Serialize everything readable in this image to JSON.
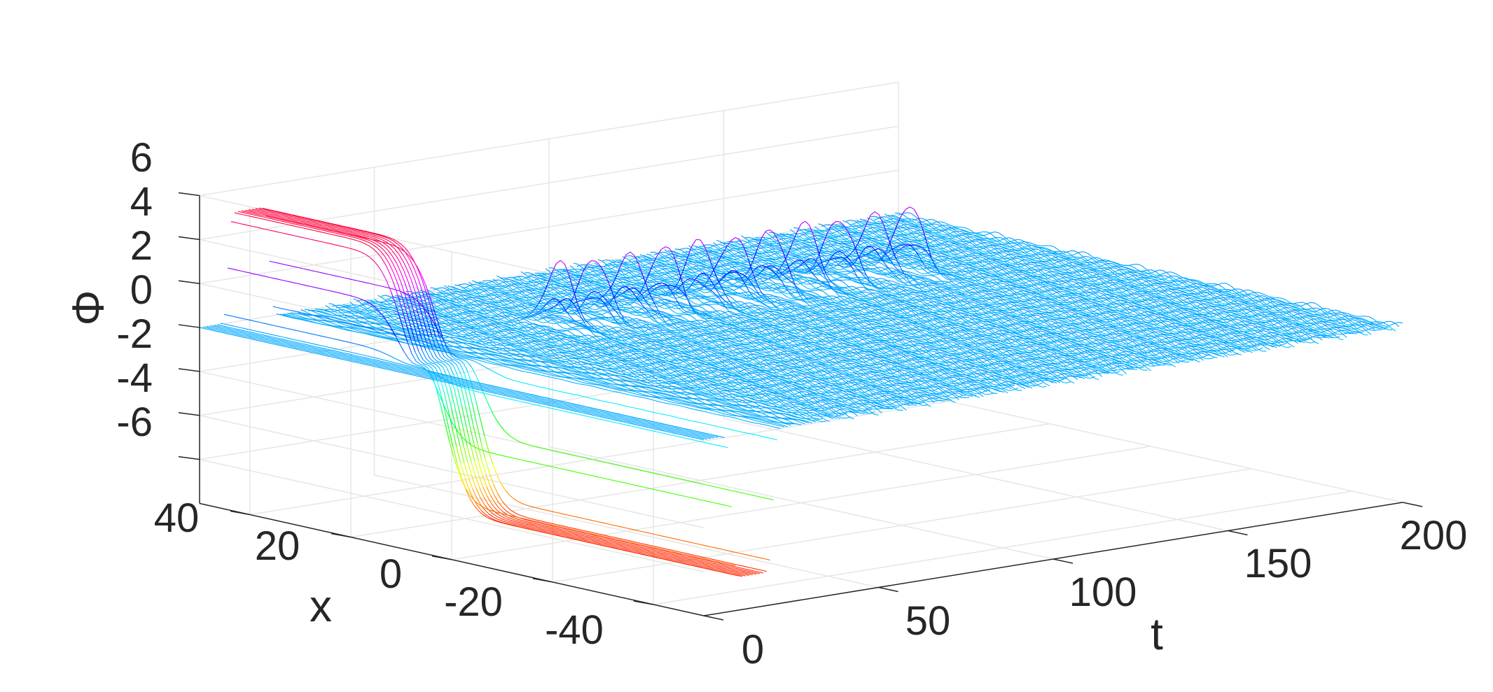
{
  "chart_data": {
    "type": "surface",
    "title": "",
    "xlabel": "t",
    "ylabel": "x",
    "zlabel": "Φ",
    "xlim": [
      0,
      200
    ],
    "ylim": [
      -50,
      50
    ],
    "zlim": [
      -8,
      6
    ],
    "x_ticks": [
      "0",
      "50",
      "100",
      "150",
      "200"
    ],
    "y_ticks": [
      "-40",
      "-20",
      "0",
      "20",
      "40"
    ],
    "z_ticks": [
      "6",
      "4",
      "2",
      "0",
      "-2",
      "-4",
      "-6"
    ],
    "grid": true,
    "colormap": "hsv",
    "features": [
      {
        "name": "kink",
        "t_start": 8,
        "t_end": 20,
        "x_center": 12,
        "peak": 5,
        "trough": -6.5
      },
      {
        "name": "breather train",
        "t_start": 60,
        "t_end": 160,
        "x_center": 20,
        "amplitude": 3.2
      }
    ]
  }
}
